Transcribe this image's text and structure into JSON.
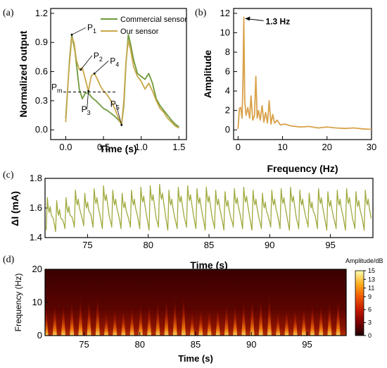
{
  "colors": {
    "commercial": "#6f9a3b",
    "ours": "#c9a84a",
    "fft": "#d9a24a",
    "current": "#a0a93e"
  },
  "chart_data": [
    {
      "panel": "(a)",
      "type": "line",
      "xlabel": "Time (s)",
      "ylabel": "Normalized output",
      "xlim": [
        -0.2,
        1.6
      ],
      "ylim": [
        -0.1,
        1.25
      ],
      "xticks": [
        "0.0",
        "0.5",
        "1.0",
        "1.5"
      ],
      "yticks": [
        "0.0",
        "0.3",
        "0.6",
        "0.9",
        "1.2"
      ],
      "legend": [
        "Commercial sensor",
        "Our sensor"
      ],
      "series": [
        {
          "name": "Commercial sensor",
          "x": [
            0,
            0.05,
            0.08,
            0.12,
            0.18,
            0.22,
            0.26,
            0.3,
            0.35,
            0.4,
            0.45,
            0.5,
            0.55,
            0.6,
            0.65,
            0.7,
            0.74,
            0.77,
            0.8,
            0.83,
            0.86,
            0.9,
            0.95,
            1.0,
            1.05,
            1.1,
            1.15,
            1.2,
            1.25,
            1.3,
            1.35,
            1.4,
            1.45,
            1.5
          ],
          "y": [
            0.12,
            0.72,
            0.98,
            0.82,
            0.42,
            0.32,
            0.38,
            0.38,
            0.33,
            0.3,
            0.26,
            0.22,
            0.2,
            0.17,
            0.14,
            0.1,
            0.06,
            0.25,
            0.7,
            0.98,
            0.88,
            0.72,
            0.58,
            0.55,
            0.52,
            0.58,
            0.48,
            0.32,
            0.25,
            0.2,
            0.15,
            0.1,
            0.06,
            0.03
          ]
        },
        {
          "name": "Our sensor",
          "x": [
            0,
            0.04,
            0.08,
            0.11,
            0.14,
            0.18,
            0.22,
            0.26,
            0.3,
            0.34,
            0.38,
            0.42,
            0.46,
            0.5,
            0.55,
            0.6,
            0.65,
            0.7,
            0.74,
            0.77,
            0.8,
            0.83,
            0.86,
            0.9,
            0.95,
            1.0,
            1.05,
            1.1,
            1.15,
            1.2,
            1.25,
            1.3,
            1.35,
            1.4,
            1.45,
            1.5
          ],
          "y": [
            0.08,
            0.6,
            0.95,
            0.9,
            0.72,
            0.62,
            0.64,
            0.52,
            0.4,
            0.56,
            0.58,
            0.52,
            0.45,
            0.4,
            0.36,
            0.3,
            0.22,
            0.12,
            0.05,
            0.3,
            0.72,
            0.92,
            0.82,
            0.65,
            0.55,
            0.5,
            0.42,
            0.48,
            0.4,
            0.3,
            0.22,
            0.18,
            0.12,
            0.08,
            0.04,
            0.02
          ]
        }
      ],
      "reference_line": {
        "y": 0.39,
        "label_main": "P",
        "label_sub": "m"
      },
      "annotations": [
        {
          "main": "P",
          "sub": "1",
          "x": 0.08,
          "y": 0.98
        },
        {
          "main": "P",
          "sub": "2",
          "x": 0.2,
          "y": 0.62
        },
        {
          "main": "P",
          "sub": "3",
          "x": 0.3,
          "y": 0.4
        },
        {
          "main": "P",
          "sub": "4",
          "x": 0.38,
          "y": 0.58
        },
        {
          "main": "P",
          "sub": "5",
          "x": 0.74,
          "y": 0.05
        }
      ]
    },
    {
      "panel": "(b)",
      "type": "line",
      "xlabel": "Frequency (Hz)",
      "ylabel": "Amplitude",
      "xlim": [
        -1,
        30
      ],
      "ylim": [
        -1,
        12.5
      ],
      "xticks": [
        "0",
        "10",
        "20",
        "30"
      ],
      "yticks": [
        "0",
        "2",
        "4",
        "6",
        "8",
        "10",
        "12"
      ],
      "series": [
        {
          "name": "",
          "x": [
            0,
            0.3,
            0.6,
            0.9,
            1.1,
            1.3,
            1.5,
            1.8,
            2.2,
            2.6,
            2.9,
            3.3,
            3.7,
            4.0,
            4.3,
            4.6,
            5.0,
            5.4,
            5.8,
            6.2,
            6.6,
            7.0,
            7.4,
            7.8,
            8.2,
            8.8,
            9.5,
            10.5,
            12,
            14,
            16,
            18,
            20,
            22,
            24,
            26,
            28,
            30
          ],
          "y": [
            0.1,
            2.2,
            2.3,
            1.2,
            5.0,
            11.6,
            3.0,
            1.5,
            2.3,
            1.2,
            3.5,
            1.0,
            1.5,
            5.5,
            1.2,
            2.0,
            1.0,
            2.5,
            0.8,
            1.8,
            0.7,
            3.0,
            0.6,
            1.6,
            0.7,
            1.0,
            0.5,
            0.6,
            0.4,
            0.3,
            0.35,
            0.2,
            0.3,
            0.2,
            0.15,
            0.2,
            0.1,
            0.05
          ]
        }
      ],
      "annotations": [
        {
          "text": "1.3 Hz",
          "x": 1.3,
          "y": 11.6
        }
      ]
    },
    {
      "panel": "(c)",
      "type": "line",
      "xlabel": "Time (s)",
      "ylabel": "ΔI (mA)",
      "xlim": [
        71.5,
        98.5
      ],
      "ylim": [
        1.4,
        1.8
      ],
      "xticks": [
        "75",
        "80",
        "85",
        "90",
        "95"
      ],
      "yticks": [
        "1.4",
        "1.6",
        "1.8"
      ],
      "series": [
        {
          "name": "",
          "description_period_s": 0.77,
          "peak_values": [
            1.67,
            1.65,
            1.67,
            1.72,
            1.7,
            1.73,
            1.75,
            1.72,
            1.7,
            1.72,
            1.74,
            1.75,
            1.76,
            1.72,
            1.74,
            1.75,
            1.73,
            1.74,
            1.72,
            1.71,
            1.73,
            1.74,
            1.72,
            1.7,
            1.72,
            1.73,
            1.74,
            1.72,
            1.7,
            1.73,
            1.71,
            1.72,
            1.73,
            1.71,
            1.72
          ],
          "trough_values": [
            1.45,
            1.44,
            1.46,
            1.47,
            1.48,
            1.47,
            1.46,
            1.47,
            1.46,
            1.47,
            1.46,
            1.45,
            1.47,
            1.45,
            1.46,
            1.47,
            1.46,
            1.45,
            1.46,
            1.45,
            1.47,
            1.46,
            1.45,
            1.46,
            1.47,
            1.46,
            1.45,
            1.46,
            1.47,
            1.46,
            1.45,
            1.46,
            1.45,
            1.46,
            1.45
          ],
          "start_time": 71.6
        }
      ]
    },
    {
      "panel": "(d)",
      "type": "heatmap",
      "xlabel": "Time (s)",
      "ylabel": "Frequency (Hz)",
      "xlim": [
        71.5,
        98.5
      ],
      "ylim": [
        0,
        20
      ],
      "xticks": [
        "75",
        "80",
        "85",
        "90",
        "95"
      ],
      "yticks": [
        "0",
        "10",
        "20"
      ],
      "colorbar": {
        "title": "Amplitude/dB",
        "range": [
          0,
          15
        ],
        "ticks": [
          "15",
          "13",
          "11",
          "9",
          "6",
          "3",
          "0"
        ]
      },
      "beat_period_s": 0.77,
      "start_time": 71.6
    }
  ]
}
